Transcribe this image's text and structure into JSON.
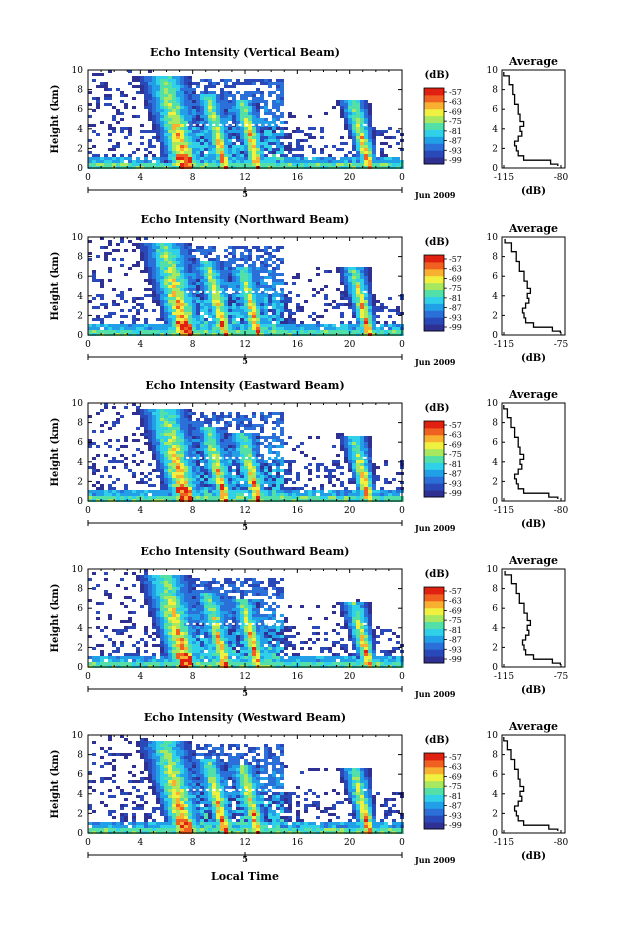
{
  "figure": {
    "xlabel": "Local Time",
    "panels": [
      {
        "title": "Echo Intensity (Vertical Beam)",
        "ylabel": "Height (km)",
        "yticks": [
          "0",
          "2",
          "4",
          "6",
          "8",
          "10"
        ],
        "xticks": [
          "0",
          "4",
          "8",
          "12",
          "16",
          "20",
          "0"
        ],
        "day_label": "5",
        "date_label": "Jun 2009",
        "colorbar": {
          "label": "(dB)",
          "ticks": [
            "-57",
            "-63",
            "-69",
            "-75",
            "-81",
            "-87",
            "-93",
            "-99"
          ]
        },
        "profile": {
          "title": "Average",
          "xlabel": "(dB)",
          "xticks": [
            "-115",
            "-80"
          ],
          "yticks": [
            "0",
            "2",
            "4",
            "6",
            "8",
            "10"
          ]
        }
      },
      {
        "title": "Echo Intensity (Northward Beam)",
        "ylabel": "Height (km)",
        "yticks": [
          "0",
          "2",
          "4",
          "6",
          "8",
          "10"
        ],
        "xticks": [
          "0",
          "4",
          "8",
          "12",
          "16",
          "20",
          "0"
        ],
        "day_label": "5",
        "date_label": "Jun 2009",
        "colorbar": {
          "label": "(dB)",
          "ticks": [
            "-57",
            "-63",
            "-69",
            "-75",
            "-81",
            "-87",
            "-93",
            "-99"
          ]
        },
        "profile": {
          "title": "Average",
          "xlabel": "(dB)",
          "xticks": [
            "-115",
            "-75"
          ],
          "yticks": [
            "0",
            "2",
            "4",
            "6",
            "8",
            "10"
          ]
        }
      },
      {
        "title": "Echo Intensity (Eastward Beam)",
        "ylabel": "Height (km)",
        "yticks": [
          "0",
          "2",
          "4",
          "6",
          "8",
          "10"
        ],
        "xticks": [
          "0",
          "4",
          "8",
          "12",
          "16",
          "20",
          "0"
        ],
        "day_label": "5",
        "date_label": "Jun 2009",
        "colorbar": {
          "label": "(dB)",
          "ticks": [
            "-57",
            "-63",
            "-69",
            "-75",
            "-81",
            "-87",
            "-93",
            "-99"
          ]
        },
        "profile": {
          "title": "Average",
          "xlabel": "(dB)",
          "xticks": [
            "-115",
            "-80"
          ],
          "yticks": [
            "0",
            "2",
            "4",
            "6",
            "8",
            "10"
          ]
        }
      },
      {
        "title": "Echo Intensity (Southward Beam)",
        "ylabel": "Height (km)",
        "yticks": [
          "0",
          "2",
          "4",
          "6",
          "8",
          "10"
        ],
        "xticks": [
          "0",
          "4",
          "8",
          "12",
          "16",
          "20",
          "0"
        ],
        "day_label": "5",
        "date_label": "Jun 2009",
        "colorbar": {
          "label": "(dB)",
          "ticks": [
            "-57",
            "-63",
            "-69",
            "-75",
            "-81",
            "-87",
            "-93",
            "-99"
          ]
        },
        "profile": {
          "title": "Average",
          "xlabel": "(dB)",
          "xticks": [
            "-115",
            "-75"
          ],
          "yticks": [
            "0",
            "2",
            "4",
            "6",
            "8",
            "10"
          ]
        }
      },
      {
        "title": "Echo Intensity (Westward Beam)",
        "ylabel": "Height (km)",
        "yticks": [
          "0",
          "2",
          "4",
          "6",
          "8",
          "10"
        ],
        "xticks": [
          "0",
          "4",
          "8",
          "12",
          "16",
          "20",
          "0"
        ],
        "day_label": "5",
        "date_label": "Jun 2009",
        "colorbar": {
          "label": "(dB)",
          "ticks": [
            "-57",
            "-63",
            "-69",
            "-75",
            "-81",
            "-87",
            "-93",
            "-99"
          ]
        },
        "profile": {
          "title": "Average",
          "xlabel": "(dB)",
          "xticks": [
            "-115",
            "-80"
          ],
          "yticks": [
            "0",
            "2",
            "4",
            "6",
            "8",
            "10"
          ]
        }
      }
    ]
  },
  "colors": {
    "colormap": [
      "#2e3192",
      "#2a49b8",
      "#2b6fd8",
      "#21a0e8",
      "#2fd0e8",
      "#52e0a8",
      "#a8e860",
      "#f0f040",
      "#f8b030",
      "#f06020",
      "#e02010"
    ]
  },
  "chart_data": [
    {
      "type": "heatmap",
      "title": "Echo Intensity (Vertical Beam)",
      "xlabel": "",
      "ylabel": "Height (km)",
      "xlim": [
        0,
        24
      ],
      "ylim": [
        0,
        10
      ],
      "colorbar": {
        "label": "(dB)",
        "range": [
          -99,
          -57
        ]
      },
      "convective_cells": [
        {
          "x": 7.5,
          "top": 9.5
        },
        {
          "x": 10.5,
          "top": 7.5
        },
        {
          "x": 13.0,
          "top": 7.0
        },
        {
          "x": 21.5,
          "top": 7.0
        }
      ],
      "bright_band_height": 4.4,
      "profile": {
        "type": "line",
        "title": "Average",
        "xlabel": "(dB)",
        "xlim": [
          -115,
          -80
        ],
        "height": [
          0.2,
          0.6,
          1,
          1.5,
          2,
          2.5,
          3,
          3.5,
          4,
          4.5,
          5,
          6,
          7,
          8,
          9,
          9.8
        ],
        "value": [
          -84,
          -88,
          -103,
          -106,
          -107,
          -108,
          -106,
          -104,
          -105,
          -103,
          -105,
          -106,
          -108,
          -109,
          -111,
          -114
        ]
      }
    },
    {
      "type": "heatmap",
      "title": "Echo Intensity (Northward Beam)",
      "xlabel": "",
      "ylabel": "Height (km)",
      "xlim": [
        0,
        24
      ],
      "ylim": [
        0,
        10
      ],
      "colorbar": {
        "label": "(dB)",
        "range": [
          -99,
          -57
        ]
      },
      "convective_cells": [
        {
          "x": 7.5,
          "top": 9.5
        },
        {
          "x": 10.5,
          "top": 7.5
        },
        {
          "x": 13.0,
          "top": 7.0
        },
        {
          "x": 21.5,
          "top": 7.0
        }
      ],
      "bright_band_height": 4.4,
      "profile": {
        "type": "line",
        "title": "Average",
        "xlabel": "(dB)",
        "xlim": [
          -115,
          -75
        ],
        "height": [
          0.2,
          0.6,
          1,
          1.5,
          2,
          2.5,
          3,
          3.5,
          4,
          4.5,
          5,
          6,
          7,
          8,
          9,
          9.8
        ],
        "value": [
          -78,
          -83,
          -95,
          -100,
          -101,
          -102,
          -100,
          -98,
          -99,
          -97,
          -99,
          -101,
          -104,
          -106,
          -109,
          -113
        ]
      }
    },
    {
      "type": "heatmap",
      "title": "Echo Intensity (Eastward Beam)",
      "xlabel": "",
      "ylabel": "Height (km)",
      "xlim": [
        0,
        24
      ],
      "ylim": [
        0,
        10
      ],
      "colorbar": {
        "label": "(dB)",
        "range": [
          -99,
          -57
        ]
      },
      "convective_cells": [
        {
          "x": 7.5,
          "top": 9.5
        },
        {
          "x": 10.5,
          "top": 7.5
        },
        {
          "x": 13.0,
          "top": 7.0
        },
        {
          "x": 21.5,
          "top": 6.5
        }
      ],
      "bright_band_height": 4.4,
      "profile": {
        "type": "line",
        "title": "Average",
        "xlabel": "(dB)",
        "xlim": [
          -115,
          -80
        ],
        "height": [
          0.2,
          0.6,
          1,
          1.5,
          2,
          2.5,
          3,
          3.5,
          4,
          4.5,
          5,
          6,
          7,
          8,
          9,
          9.8
        ],
        "value": [
          -84,
          -89,
          -103,
          -106,
          -107,
          -108,
          -106,
          -104,
          -105,
          -103,
          -105,
          -106,
          -108,
          -110,
          -112,
          -114
        ]
      }
    },
    {
      "type": "heatmap",
      "title": "Echo Intensity (Southward Beam)",
      "xlabel": "",
      "ylabel": "Height (km)",
      "xlim": [
        0,
        24
      ],
      "ylim": [
        0,
        10
      ],
      "colorbar": {
        "label": "(dB)",
        "range": [
          -99,
          -57
        ]
      },
      "convective_cells": [
        {
          "x": 7.5,
          "top": 9.5
        },
        {
          "x": 10.5,
          "top": 7.5
        },
        {
          "x": 13.0,
          "top": 7.0
        },
        {
          "x": 21.5,
          "top": 6.5
        }
      ],
      "bright_band_height": 4.4,
      "profile": {
        "type": "line",
        "title": "Average",
        "xlabel": "(dB)",
        "xlim": [
          -115,
          -75
        ],
        "height": [
          0.2,
          0.6,
          1,
          1.5,
          2,
          2.5,
          3,
          3.5,
          4,
          4.5,
          5,
          6,
          7,
          8,
          9,
          9.8
        ],
        "value": [
          -78,
          -83,
          -95,
          -100,
          -101,
          -102,
          -100,
          -98,
          -99,
          -97,
          -99,
          -101,
          -104,
          -106,
          -109,
          -113
        ]
      }
    },
    {
      "type": "heatmap",
      "title": "Echo Intensity (Westward Beam)",
      "xlabel": "Local Time",
      "ylabel": "Height (km)",
      "xlim": [
        0,
        24
      ],
      "ylim": [
        0,
        10
      ],
      "colorbar": {
        "label": "(dB)",
        "range": [
          -99,
          -57
        ]
      },
      "convective_cells": [
        {
          "x": 7.5,
          "top": 9.5
        },
        {
          "x": 10.5,
          "top": 7.5
        },
        {
          "x": 13.0,
          "top": 7.0
        },
        {
          "x": 21.5,
          "top": 6.5
        }
      ],
      "bright_band_height": 4.4,
      "profile": {
        "type": "line",
        "title": "Average",
        "xlabel": "(dB)",
        "xlim": [
          -115,
          -80
        ],
        "height": [
          0.2,
          0.6,
          1,
          1.5,
          2,
          2.5,
          3,
          3.5,
          4,
          4.5,
          5,
          6,
          7,
          8,
          9,
          9.8
        ],
        "value": [
          -84,
          -89,
          -103,
          -106,
          -107,
          -108,
          -106,
          -104,
          -105,
          -103,
          -105,
          -106,
          -108,
          -110,
          -112,
          -114
        ]
      }
    }
  ]
}
